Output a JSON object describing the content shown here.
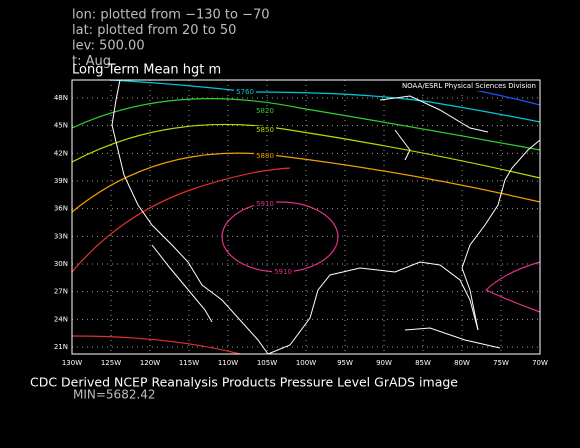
{
  "header": {
    "lines": [
      "lon: plotted from −130 to −70",
      "lat: plotted from 20  to 50",
      "lev: 500.00",
      "t: Aug"
    ]
  },
  "map": {
    "title": "Long Term Mean hgt m",
    "credit": "NOAA/ESRL Physical Sciences Division",
    "lat_labels": [
      "48N",
      "45N",
      "42N",
      "39N",
      "36N",
      "33N",
      "30N",
      "27N",
      "24N",
      "21N"
    ],
    "lon_labels": [
      "130W",
      "125W",
      "120W",
      "115W",
      "110W",
      "105W",
      "100W",
      "95W",
      "90W",
      "85W",
      "80W",
      "75W",
      "70W"
    ],
    "contour_labels": [
      "5760",
      "5820",
      "5850",
      "5880",
      "5910",
      "5910"
    ]
  },
  "footer": {
    "caption": "CDC Derived NCEP Reanalysis Products Pressure Level GrADS image",
    "min": "MIN=5682.42"
  }
}
